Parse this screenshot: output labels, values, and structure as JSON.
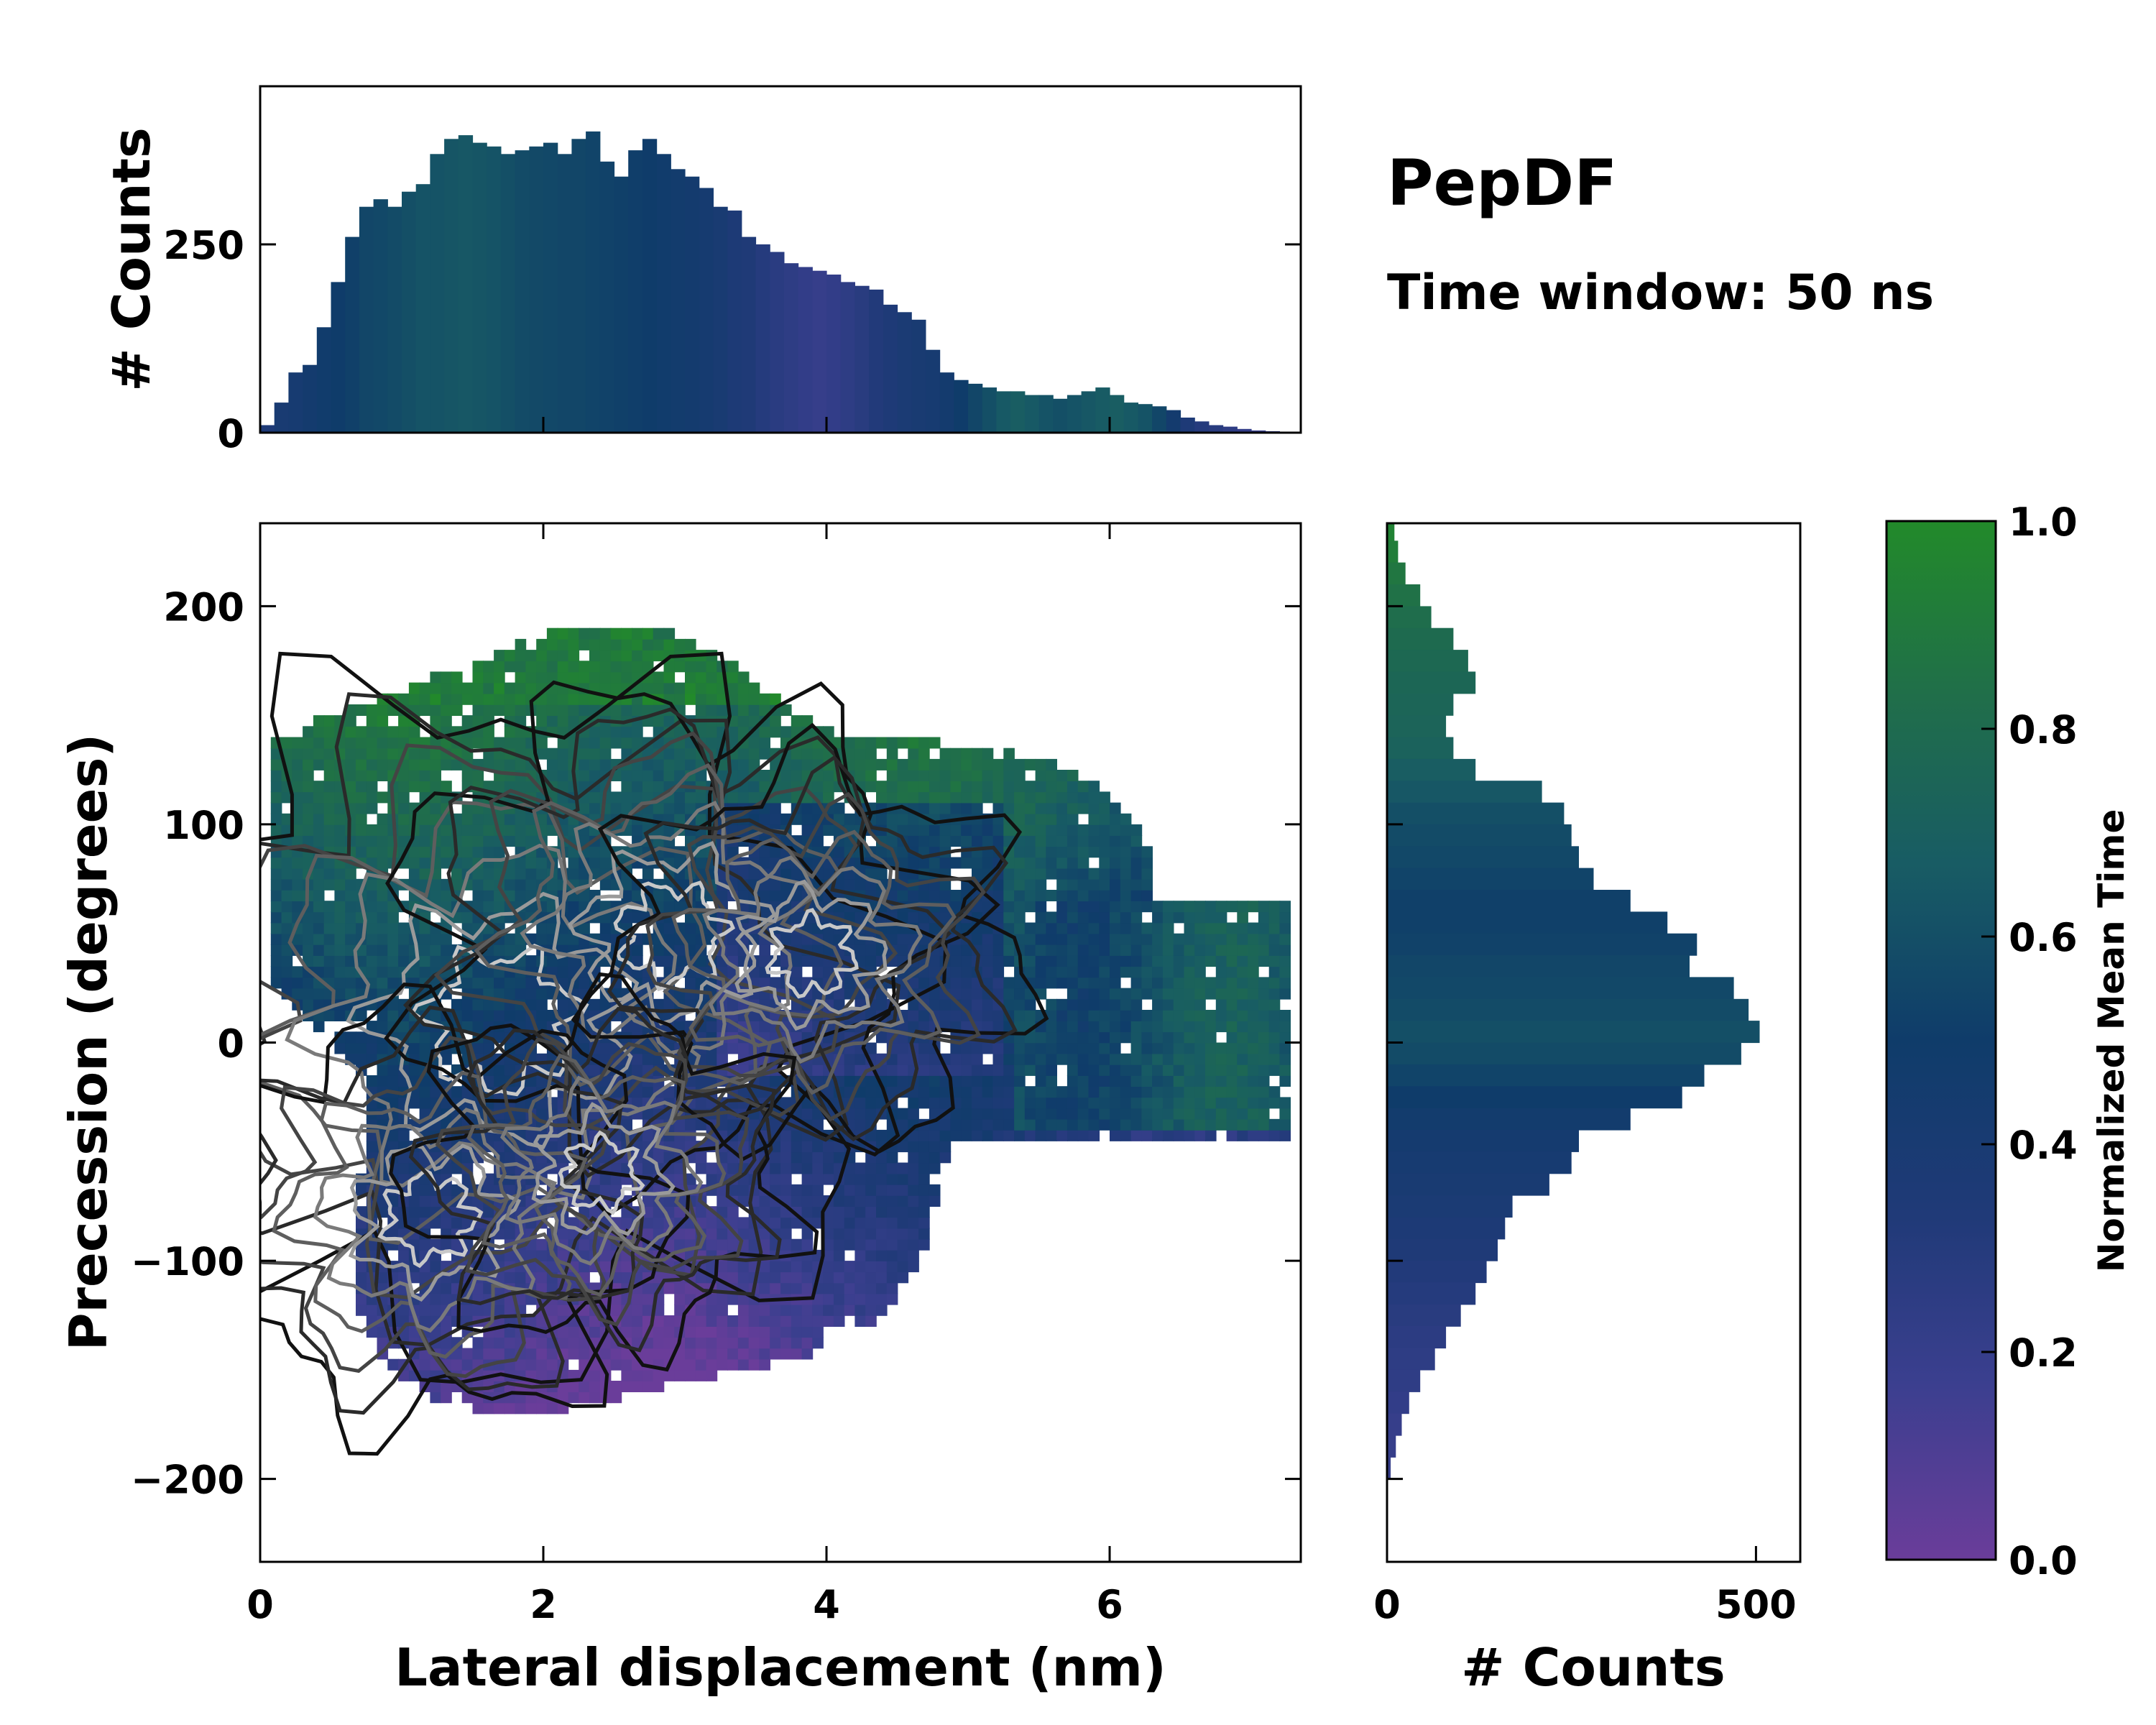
{
  "chart_data": [
    {
      "type": "heatmap",
      "name": "main-heatmap",
      "xlabel": "Lateral displacement (nm)",
      "ylabel": "Precession (degrees)",
      "xlim": [
        0,
        7.35
      ],
      "ylim": [
        -238,
        238
      ],
      "xticks": [
        0,
        2,
        4,
        6
      ],
      "xtick_labels": [
        "0",
        "2",
        "4",
        "6"
      ],
      "yticks": [
        -200,
        -100,
        0,
        100,
        200
      ],
      "ytick_labels": [
        "−200",
        "−100",
        "0",
        "100",
        "200"
      ],
      "color_by": "Normalized Mean Time",
      "contours": "density contours (black to light gray)"
    },
    {
      "type": "bar",
      "name": "top-histogram",
      "ylabel": "# Counts",
      "xlim": [
        0,
        7.35
      ],
      "ylim": [
        0,
        460
      ],
      "yticks": [
        0,
        250
      ],
      "ytick_labels": [
        "0",
        "250"
      ],
      "x": [
        0.0,
        0.1,
        0.2,
        0.3,
        0.4,
        0.5,
        0.6,
        0.7,
        0.8,
        0.9,
        1.0,
        1.1,
        1.2,
        1.3,
        1.4,
        1.5,
        1.6,
        1.7,
        1.8,
        1.9,
        2.0,
        2.1,
        2.2,
        2.3,
        2.4,
        2.5,
        2.6,
        2.7,
        2.8,
        2.9,
        3.0,
        3.1,
        3.2,
        3.3,
        3.4,
        3.5,
        3.6,
        3.7,
        3.8,
        3.9,
        4.0,
        4.1,
        4.2,
        4.3,
        4.4,
        4.5,
        4.6,
        4.7,
        4.8,
        4.9,
        5.0,
        5.1,
        5.2,
        5.3,
        5.4,
        5.5,
        5.6,
        5.7,
        5.8,
        5.9,
        6.0,
        6.1,
        6.2,
        6.3,
        6.4,
        6.5,
        6.6,
        6.7,
        6.8,
        6.9,
        7.0,
        7.1,
        7.2
      ],
      "values": [
        10,
        40,
        80,
        90,
        140,
        200,
        260,
        300,
        310,
        300,
        320,
        330,
        370,
        390,
        395,
        385,
        380,
        370,
        375,
        380,
        385,
        370,
        390,
        400,
        360,
        340,
        375,
        390,
        370,
        350,
        340,
        325,
        300,
        295,
        260,
        250,
        240,
        225,
        220,
        215,
        210,
        200,
        195,
        190,
        170,
        160,
        150,
        110,
        80,
        70,
        65,
        60,
        55,
        55,
        50,
        50,
        45,
        50,
        55,
        60,
        50,
        40,
        38,
        35,
        30,
        20,
        15,
        10,
        8,
        5,
        3,
        2,
        0
      ],
      "color_values": [
        0.35,
        0.4,
        0.42,
        0.45,
        0.48,
        0.5,
        0.52,
        0.55,
        0.56,
        0.58,
        0.6,
        0.62,
        0.62,
        0.63,
        0.64,
        0.63,
        0.62,
        0.6,
        0.58,
        0.57,
        0.56,
        0.55,
        0.55,
        0.54,
        0.53,
        0.52,
        0.51,
        0.5,
        0.48,
        0.46,
        0.45,
        0.43,
        0.4,
        0.36,
        0.34,
        0.3,
        0.27,
        0.25,
        0.22,
        0.2,
        0.22,
        0.25,
        0.28,
        0.32,
        0.35,
        0.38,
        0.4,
        0.42,
        0.45,
        0.5,
        0.55,
        0.6,
        0.65,
        0.68,
        0.65,
        0.62,
        0.6,
        0.62,
        0.64,
        0.66,
        0.68,
        0.65,
        0.62,
        0.55,
        0.45,
        0.35,
        0.3,
        0.28,
        0.25,
        0.22,
        0.2,
        0.2,
        0.2
      ]
    },
    {
      "type": "bar",
      "name": "right-histogram",
      "orientation": "horizontal",
      "xlabel": "# Counts",
      "xlim": [
        0,
        560
      ],
      "xticks": [
        0,
        500
      ],
      "xtick_labels": [
        "0",
        "500"
      ],
      "ylim": [
        -238,
        238
      ],
      "y": [
        235,
        225,
        215,
        205,
        195,
        185,
        175,
        165,
        155,
        145,
        135,
        125,
        115,
        105,
        95,
        85,
        75,
        65,
        55,
        45,
        35,
        25,
        15,
        5,
        -5,
        -15,
        -25,
        -35,
        -45,
        -55,
        -65,
        -75,
        -85,
        -95,
        -105,
        -115,
        -125,
        -135,
        -145,
        -155,
        -165,
        -175,
        -185,
        -195
      ],
      "values": [
        10,
        15,
        25,
        45,
        60,
        90,
        110,
        120,
        90,
        80,
        90,
        120,
        210,
        240,
        250,
        260,
        280,
        330,
        380,
        420,
        410,
        470,
        490,
        505,
        480,
        430,
        400,
        330,
        260,
        250,
        220,
        170,
        160,
        150,
        135,
        120,
        100,
        80,
        65,
        45,
        30,
        20,
        12,
        5
      ],
      "color_values": [
        0.95,
        0.92,
        0.88,
        0.85,
        0.82,
        0.8,
        0.78,
        0.76,
        0.75,
        0.74,
        0.72,
        0.68,
        0.64,
        0.6,
        0.58,
        0.56,
        0.54,
        0.52,
        0.52,
        0.53,
        0.55,
        0.56,
        0.58,
        0.6,
        0.58,
        0.54,
        0.5,
        0.46,
        0.44,
        0.42,
        0.4,
        0.38,
        0.36,
        0.34,
        0.32,
        0.3,
        0.28,
        0.26,
        0.25,
        0.24,
        0.22,
        0.2,
        0.2,
        0.2
      ]
    },
    {
      "type": "colorbar",
      "name": "colorbar",
      "label": "Normalized Mean Time",
      "range": [
        0.0,
        1.0
      ],
      "ticks": [
        0.0,
        0.2,
        0.4,
        0.6,
        0.8,
        1.0
      ],
      "tick_labels": [
        "0.0",
        "0.2",
        "0.4",
        "0.6",
        "0.8",
        "1.0"
      ],
      "colormap": [
        "#6a3d9a",
        "#3b3f8f",
        "#203a78",
        "#0f3c6a",
        "#185c64",
        "#206e4a",
        "#228a2a"
      ]
    }
  ],
  "annotation": {
    "title": "PepDF",
    "subtitle": "Time window: 50 ns"
  }
}
